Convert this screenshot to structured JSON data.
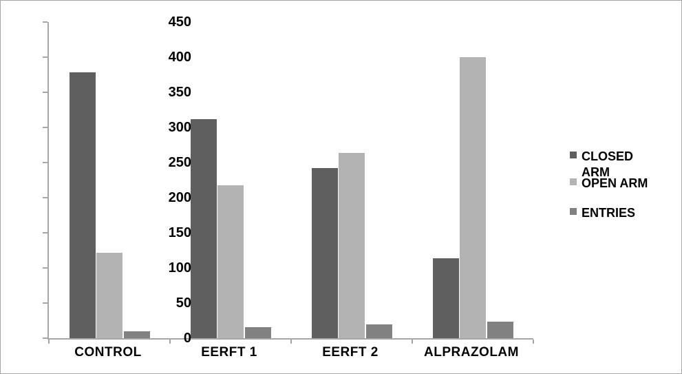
{
  "chart_data": {
    "type": "bar",
    "title": "",
    "xlabel": "",
    "ylabel": "",
    "categories": [
      "CONTROL",
      "EERFT 1",
      "EERFT 2",
      "ALPRAZOLAM"
    ],
    "series": [
      {
        "name": "CLOSED ARM",
        "color": "#5f5f5f",
        "values": [
          378,
          312,
          242,
          114
        ]
      },
      {
        "name": "OPEN ARM",
        "color": "#b3b3b3",
        "values": [
          122,
          218,
          264,
          400
        ]
      },
      {
        "name": "ENTRIES",
        "color": "#818181",
        "values": [
          10,
          16,
          20,
          24
        ]
      }
    ],
    "ylim": [
      0,
      450
    ],
    "ytick_step": 50,
    "ytick_labels": [
      "0",
      "50",
      "100",
      "150",
      "200",
      "250",
      "300",
      "350",
      "400",
      "450"
    ],
    "grid": false,
    "legend_position": "right",
    "axis_color": "#a6a6a6",
    "background_color": "#ffffff"
  }
}
